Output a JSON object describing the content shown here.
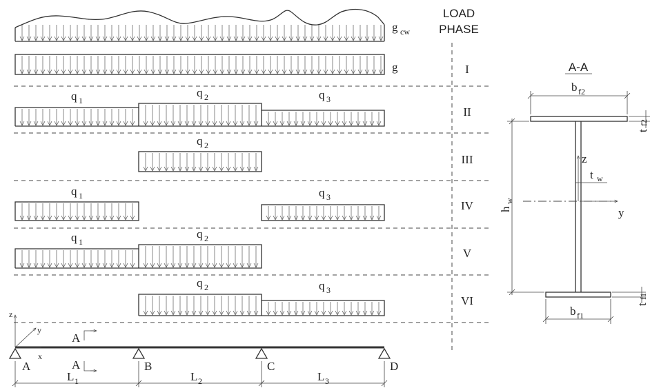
{
  "header": {
    "load": "LOAD",
    "phase": "PHASE"
  },
  "load_labels": {
    "gcw_main": "g",
    "gcw_sub": "cw",
    "g": "g"
  },
  "phases": [
    "I",
    "II",
    "III",
    "IV",
    "V",
    "VI"
  ],
  "q_labels": [
    {
      "main": "q",
      "sub": "1"
    },
    {
      "main": "q",
      "sub": "2"
    },
    {
      "main": "q",
      "sub": "3"
    }
  ],
  "supports": [
    "A",
    "B",
    "C",
    "D"
  ],
  "spans": [
    {
      "main": "L",
      "sub": "1"
    },
    {
      "main": "L",
      "sub": "2"
    },
    {
      "main": "L",
      "sub": "3"
    }
  ],
  "axes": {
    "z": "z",
    "y": "y",
    "x": "x"
  },
  "section_marker": "A",
  "section": {
    "title": "A-A",
    "bf2": {
      "main": "b",
      "sub": "f2"
    },
    "tf2": {
      "main": "t",
      "sub": "f2"
    },
    "z": "z",
    "tw": {
      "main": "t",
      "sub": "w"
    },
    "hw": {
      "main": "h",
      "sub": "w"
    },
    "y": "y",
    "tf1": {
      "main": "t",
      "sub": "f1"
    },
    "bf1": {
      "main": "b",
      "sub": "f1"
    }
  }
}
